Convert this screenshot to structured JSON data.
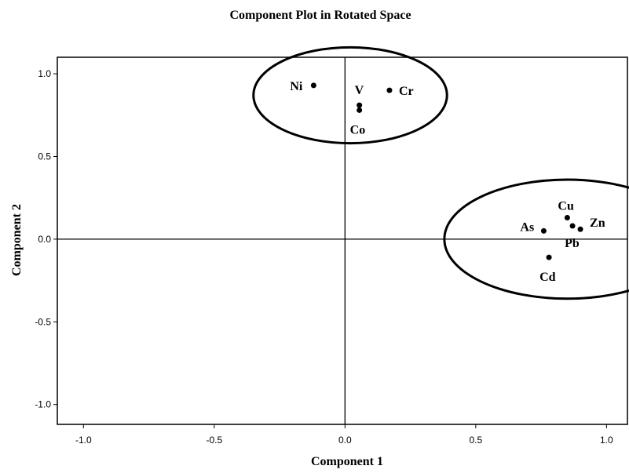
{
  "chart_data": {
    "type": "scatter",
    "title": "Component Plot in Rotated Space",
    "xlabel": "Component 1",
    "ylabel": "Component 2",
    "xlim": [
      -1.1,
      1.08
    ],
    "ylim": [
      -1.12,
      1.1
    ],
    "xticks": [
      -1.0,
      -0.5,
      0.0,
      0.5,
      1.0
    ],
    "xtick_labels": [
      "-1.0",
      "-0.5",
      "0.0",
      "0.5",
      "1.0"
    ],
    "yticks": [
      1.0,
      0.5,
      0.0,
      -0.5,
      -1.0
    ],
    "ytick_labels": [
      "1.0",
      "0.5",
      "0.0",
      "-0.5",
      "-1.0"
    ],
    "reference_lines": {
      "x": 0,
      "y": 0
    },
    "grid": false,
    "points": [
      {
        "label": "Ni",
        "x": -0.12,
        "y": 0.93
      },
      {
        "label": "Cr",
        "x": 0.17,
        "y": 0.9
      },
      {
        "label": "V",
        "x": 0.055,
        "y": 0.81
      },
      {
        "label": "Co",
        "x": 0.055,
        "y": 0.78
      },
      {
        "label": "Cu",
        "x": 0.85,
        "y": 0.13
      },
      {
        "label": "Zn",
        "x": 0.9,
        "y": 0.06
      },
      {
        "label": "Pb",
        "x": 0.87,
        "y": 0.08
      },
      {
        "label": "As",
        "x": 0.76,
        "y": 0.05
      },
      {
        "label": "Cd",
        "x": 0.78,
        "y": -0.11
      }
    ],
    "groups": [
      {
        "members": [
          "Ni",
          "Cr",
          "V",
          "Co"
        ],
        "center": [
          0.02,
          0.87
        ],
        "radius": [
          0.37,
          0.29
        ]
      },
      {
        "members": [
          "Cu",
          "Zn",
          "Pb",
          "As",
          "Cd"
        ],
        "center": [
          0.85,
          0.0
        ],
        "radius": [
          0.47,
          0.36
        ]
      }
    ]
  }
}
